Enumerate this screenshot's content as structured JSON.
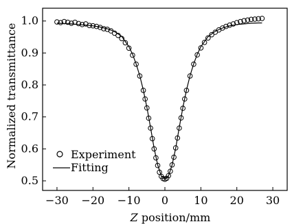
{
  "chart_data": {
    "type": "scatter",
    "title": "",
    "xlabel_italic": "Z",
    "xlabel_rest": " position/mm",
    "ylabel": "Normalized transmittance",
    "xlim": [
      -34,
      34
    ],
    "ylim": [
      0.47,
      1.04
    ],
    "x_ticks": [
      -30,
      -20,
      -10,
      0,
      10,
      20,
      30
    ],
    "x_tick_labels": [
      "−30",
      "−20",
      "−10",
      "0",
      "10",
      "20",
      "30"
    ],
    "y_ticks": [
      0.5,
      0.6,
      0.7,
      0.8,
      0.9,
      1.0
    ],
    "y_tick_labels": [
      "0.5",
      "0.6",
      "0.7",
      "0.8",
      "0.9",
      "1.0"
    ],
    "grid": false,
    "legend_position": "bottom-left",
    "series": [
      {
        "name": "Experiment",
        "kind": "markers",
        "marker": "open-circle",
        "color": "#000000",
        "x": [
          -30,
          -29,
          -28,
          -27,
          -26,
          -25,
          -24,
          -23,
          -22,
          -21,
          -20,
          -19,
          -18,
          -17,
          -16,
          -15,
          -14,
          -13,
          -12,
          -11,
          -10,
          -9,
          -8,
          -7,
          -6,
          -5.5,
          -5,
          -4.5,
          -4,
          -3.5,
          -3,
          -2.5,
          -2,
          -1.5,
          -1,
          -0.5,
          0,
          0.5,
          1,
          1.5,
          2,
          2.5,
          3,
          3.5,
          4,
          4.5,
          5,
          5.5,
          6,
          7,
          8,
          9,
          10,
          11,
          12,
          13,
          14,
          15,
          16,
          17,
          18,
          19,
          20,
          21,
          22,
          23,
          24,
          25,
          26,
          27
        ],
        "y": [
          0.997,
          0.995,
          0.998,
          0.996,
          0.993,
          0.996,
          0.992,
          0.989,
          0.991,
          0.986,
          0.985,
          0.983,
          0.98,
          0.976,
          0.974,
          0.969,
          0.962,
          0.955,
          0.945,
          0.932,
          0.915,
          0.893,
          0.865,
          0.828,
          0.783,
          0.756,
          0.728,
          0.696,
          0.665,
          0.632,
          0.6,
          0.572,
          0.548,
          0.527,
          0.514,
          0.507,
          0.505,
          0.508,
          0.516,
          0.53,
          0.55,
          0.574,
          0.603,
          0.634,
          0.665,
          0.697,
          0.727,
          0.756,
          0.783,
          0.828,
          0.865,
          0.894,
          0.916,
          0.933,
          0.947,
          0.957,
          0.965,
          0.972,
          0.978,
          0.983,
          0.987,
          0.991,
          0.995,
          0.998,
          1.001,
          1.003,
          1.005,
          1.006,
          1.007,
          1.008
        ]
      },
      {
        "name": "Fitting",
        "kind": "line",
        "color": "#000000",
        "x": [
          -30,
          -28,
          -26,
          -24,
          -22,
          -20,
          -18,
          -16,
          -14,
          -12,
          -10,
          -9,
          -8,
          -7,
          -6,
          -5,
          -4,
          -3,
          -2,
          -1,
          0,
          1,
          2,
          3,
          4,
          5,
          6,
          7,
          8,
          9,
          10,
          12,
          14,
          16,
          18,
          20,
          22,
          24,
          26,
          27
        ],
        "y": [
          0.993,
          0.992,
          0.991,
          0.989,
          0.987,
          0.985,
          0.981,
          0.976,
          0.967,
          0.952,
          0.92,
          0.896,
          0.866,
          0.829,
          0.784,
          0.73,
          0.667,
          0.602,
          0.55,
          0.515,
          0.505,
          0.515,
          0.55,
          0.602,
          0.667,
          0.73,
          0.784,
          0.829,
          0.866,
          0.896,
          0.92,
          0.951,
          0.968,
          0.978,
          0.985,
          0.989,
          0.991,
          0.993,
          0.994,
          0.994
        ]
      }
    ]
  }
}
